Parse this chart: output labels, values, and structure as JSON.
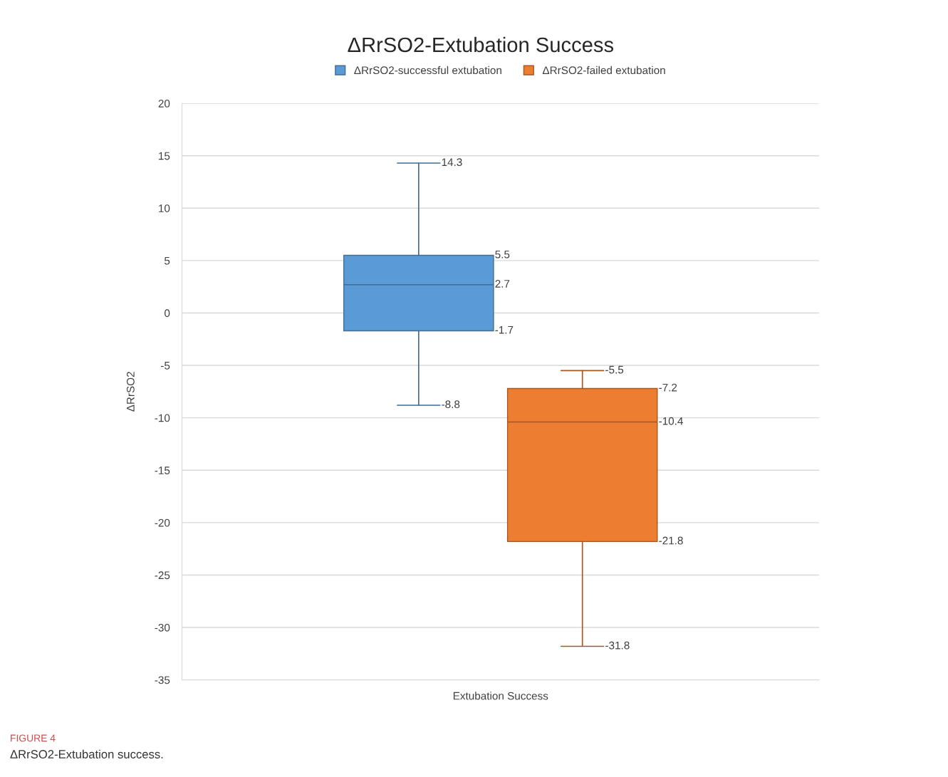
{
  "chart_data": {
    "type": "box",
    "title": "ΔRrSO2-Extubation Success",
    "ylabel": "ΔRrSO2",
    "categories": [
      "Extubation Success"
    ],
    "series": [
      {
        "name": "ΔRrSO2-successful extubation",
        "color": "#5b9bd5",
        "boxes": [
          {
            "low": -8.8,
            "q1": -1.7,
            "median": 2.7,
            "q3": 5.5,
            "high": 14.3
          }
        ],
        "value_labels": [
          [
            "14.3",
            "5.5",
            "2.7",
            "-1.7",
            "-8.8"
          ]
        ]
      },
      {
        "name": "ΔRrSO2-failed extubation",
        "color": "#ed7d31",
        "boxes": [
          {
            "low": -31.8,
            "q1": -21.8,
            "median": -10.4,
            "q3": -7.2,
            "high": -5.5
          }
        ],
        "value_labels": [
          [
            "-5.5",
            "-7.2",
            "-10.4",
            "-21.8",
            "-31.8"
          ]
        ]
      }
    ],
    "ylim": [
      -35,
      20
    ],
    "yticks": [
      -35,
      -30,
      -25,
      -20,
      -15,
      -10,
      -5,
      0,
      5,
      10,
      15,
      20
    ],
    "grid": "y",
    "legend": "top",
    "annotations": [
      "FIGURE 4",
      "ΔRrSO2-Extubation success."
    ]
  }
}
